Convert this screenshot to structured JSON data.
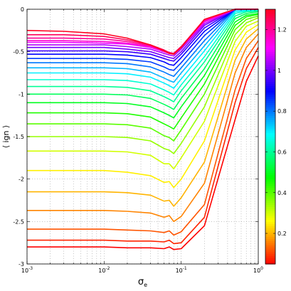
{
  "chart_data": {
    "type": "line",
    "title": "",
    "xlabel": "σ",
    "xlabel_sub": "e",
    "ylabel": "⟨ ign ⟩",
    "x_scale": "log",
    "xlim": [
      0.001,
      1
    ],
    "ylim": [
      -3,
      0
    ],
    "grid": true,
    "x_ticks": [
      {
        "value": 0.001,
        "base": "10",
        "exp": "-3"
      },
      {
        "value": 0.01,
        "base": "10",
        "exp": "-2"
      },
      {
        "value": 0.1,
        "base": "10",
        "exp": "-1"
      },
      {
        "value": 1,
        "base": "10",
        "exp": "0"
      }
    ],
    "y_ticks": [
      {
        "value": 0,
        "label": "0"
      },
      {
        "value": -0.5,
        "label": "-0.5"
      },
      {
        "value": -1,
        "label": "-1"
      },
      {
        "value": -1.5,
        "label": "-1.5"
      },
      {
        "value": -2,
        "label": "-2"
      },
      {
        "value": -2.5,
        "label": "-2.5"
      },
      {
        "value": -3,
        "label": "-3"
      }
    ],
    "colorbar": {
      "range": [
        0.05,
        1.3
      ],
      "colormap": "hsv",
      "ticks": [
        {
          "value": 0.2,
          "label": "0.2"
        },
        {
          "value": 0.4,
          "label": "0.4"
        },
        {
          "value": 0.6,
          "label": "0.6"
        },
        {
          "value": 0.8,
          "label": "0.8"
        },
        {
          "value": 1.0,
          "label": "1"
        },
        {
          "value": 1.2,
          "label": "1.2"
        }
      ]
    },
    "x": [
      0.001,
      0.003,
      0.01,
      0.02,
      0.04,
      0.06,
      0.07,
      0.08,
      0.1,
      0.2,
      0.5,
      0.7,
      1.0
    ],
    "series": [
      {
        "param": 0.05,
        "values": [
          -2.8,
          -2.8,
          -2.8,
          -2.81,
          -2.81,
          -2.82,
          -2.8,
          -2.83,
          -2.82,
          -2.55,
          -1.3,
          -0.85,
          -0.55
        ]
      },
      {
        "param": 0.08,
        "values": [
          -2.72,
          -2.72,
          -2.72,
          -2.73,
          -2.73,
          -2.74,
          -2.72,
          -2.76,
          -2.75,
          -2.45,
          -1.1,
          -0.7,
          -0.45
        ]
      },
      {
        "param": 0.12,
        "values": [
          -2.59,
          -2.59,
          -2.59,
          -2.6,
          -2.61,
          -2.63,
          -2.61,
          -2.66,
          -2.62,
          -2.3,
          -0.95,
          -0.58,
          -0.37
        ]
      },
      {
        "param": 0.16,
        "values": [
          -2.37,
          -2.37,
          -2.37,
          -2.38,
          -2.4,
          -2.45,
          -2.43,
          -2.5,
          -2.44,
          -2.05,
          -0.75,
          -0.45,
          -0.29
        ]
      },
      {
        "param": 0.2,
        "values": [
          -2.15,
          -2.15,
          -2.15,
          -2.16,
          -2.19,
          -2.26,
          -2.25,
          -2.32,
          -2.22,
          -1.8,
          -0.6,
          -0.35,
          -0.23
        ]
      },
      {
        "param": 0.25,
        "values": [
          -1.9,
          -1.9,
          -1.9,
          -1.92,
          -1.96,
          -2.04,
          -2.03,
          -2.1,
          -2.0,
          -1.55,
          -0.48,
          -0.27,
          -0.18
        ]
      },
      {
        "param": 0.3,
        "values": [
          -1.67,
          -1.67,
          -1.67,
          -1.68,
          -1.72,
          -1.82,
          -1.82,
          -1.88,
          -1.75,
          -1.32,
          -0.38,
          -0.2,
          -0.14
        ]
      },
      {
        "param": 0.35,
        "values": [
          -1.5,
          -1.5,
          -1.5,
          -1.51,
          -1.55,
          -1.64,
          -1.66,
          -1.7,
          -1.58,
          -1.15,
          -0.3,
          -0.16,
          -0.1
        ]
      },
      {
        "param": 0.4,
        "values": [
          -1.35,
          -1.35,
          -1.35,
          -1.36,
          -1.4,
          -1.49,
          -1.51,
          -1.55,
          -1.42,
          -1.0,
          -0.24,
          -0.12,
          -0.08
        ]
      },
      {
        "param": 0.45,
        "values": [
          -1.22,
          -1.22,
          -1.22,
          -1.23,
          -1.27,
          -1.35,
          -1.38,
          -1.41,
          -1.28,
          -0.88,
          -0.19,
          -0.09,
          -0.06
        ]
      },
      {
        "param": 0.5,
        "values": [
          -1.1,
          -1.1,
          -1.1,
          -1.11,
          -1.15,
          -1.22,
          -1.25,
          -1.28,
          -1.15,
          -0.78,
          -0.15,
          -0.07,
          -0.05
        ]
      },
      {
        "param": 0.55,
        "values": [
          -1.0,
          -1.0,
          -1.0,
          -1.01,
          -1.05,
          -1.12,
          -1.15,
          -1.18,
          -1.05,
          -0.7,
          -0.11,
          -0.05,
          -0.03
        ]
      },
      {
        "param": 0.6,
        "values": [
          -0.91,
          -0.91,
          -0.91,
          -0.92,
          -0.96,
          -1.03,
          -1.06,
          -1.09,
          -0.96,
          -0.62,
          -0.08,
          -0.03,
          -0.02
        ]
      },
      {
        "param": 0.65,
        "values": [
          -0.83,
          -0.83,
          -0.83,
          -0.84,
          -0.88,
          -0.95,
          -0.98,
          -1.01,
          -0.89,
          -0.56,
          -0.05,
          -0.02,
          -0.01
        ]
      },
      {
        "param": 0.7,
        "values": [
          -0.75,
          -0.75,
          -0.75,
          -0.76,
          -0.8,
          -0.87,
          -0.9,
          -0.93,
          -0.82,
          -0.49,
          -0.03,
          -0.01,
          0.0
        ]
      },
      {
        "param": 0.75,
        "values": [
          -0.69,
          -0.69,
          -0.69,
          -0.7,
          -0.74,
          -0.81,
          -0.84,
          -0.86,
          -0.75,
          -0.43,
          -0.01,
          0.0,
          0.0
        ]
      },
      {
        "param": 0.8,
        "values": [
          -0.63,
          -0.63,
          -0.63,
          -0.64,
          -0.68,
          -0.74,
          -0.77,
          -0.79,
          -0.69,
          -0.37,
          0.0,
          0.0,
          0.0
        ]
      },
      {
        "param": 0.85,
        "values": [
          -0.58,
          -0.58,
          -0.58,
          -0.59,
          -0.62,
          -0.68,
          -0.71,
          -0.72,
          -0.63,
          -0.31,
          0.0,
          0.0,
          0.0
        ]
      },
      {
        "param": 0.9,
        "values": [
          -0.53,
          -0.53,
          -0.53,
          -0.54,
          -0.57,
          -0.62,
          -0.65,
          -0.66,
          -0.57,
          -0.26,
          0.0,
          0.0,
          0.0
        ]
      },
      {
        "param": 0.95,
        "values": [
          -0.49,
          -0.49,
          -0.49,
          -0.5,
          -0.53,
          -0.58,
          -0.6,
          -0.61,
          -0.53,
          -0.22,
          0.0,
          0.0,
          0.0
        ]
      },
      {
        "param": 1.0,
        "values": [
          -0.45,
          -0.45,
          -0.45,
          -0.47,
          -0.5,
          -0.55,
          -0.57,
          -0.58,
          -0.5,
          -0.19,
          0.0,
          0.0,
          0.0
        ]
      },
      {
        "param": 1.05,
        "values": [
          -0.42,
          -0.42,
          -0.42,
          -0.44,
          -0.47,
          -0.52,
          -0.54,
          -0.55,
          -0.47,
          -0.17,
          0.0,
          0.0,
          0.0
        ]
      },
      {
        "param": 1.1,
        "values": [
          -0.39,
          -0.39,
          -0.4,
          -0.41,
          -0.45,
          -0.5,
          -0.52,
          -0.53,
          -0.45,
          -0.15,
          0.0,
          0.0,
          0.0
        ]
      },
      {
        "param": 1.15,
        "values": [
          -0.37,
          -0.37,
          -0.38,
          -0.4,
          -0.44,
          -0.49,
          -0.51,
          -0.52,
          -0.44,
          -0.14,
          0.0,
          0.0,
          0.0
        ]
      },
      {
        "param": 1.2,
        "values": [
          -0.34,
          -0.34,
          -0.35,
          -0.38,
          -0.43,
          -0.49,
          -0.51,
          -0.52,
          -0.44,
          -0.13,
          0.0,
          0.0,
          0.0
        ]
      },
      {
        "param": 1.25,
        "values": [
          -0.3,
          -0.3,
          -0.32,
          -0.36,
          -0.42,
          -0.48,
          -0.51,
          -0.52,
          -0.44,
          -0.12,
          0.0,
          0.0,
          0.0
        ]
      },
      {
        "param": 1.3,
        "values": [
          -0.25,
          -0.26,
          -0.29,
          -0.34,
          -0.42,
          -0.49,
          -0.52,
          -0.53,
          -0.45,
          -0.12,
          0.0,
          0.0,
          0.0
        ]
      }
    ]
  }
}
